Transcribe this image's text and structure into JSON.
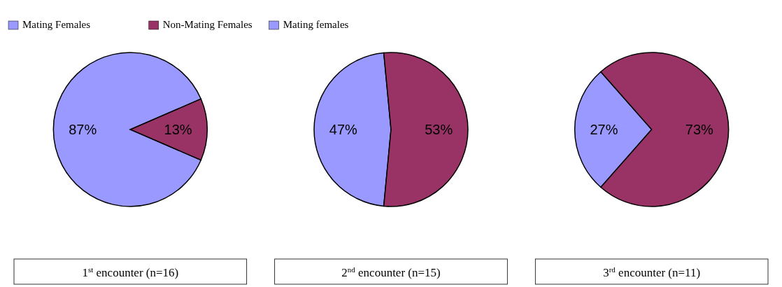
{
  "chart_data": [
    {
      "type": "pie",
      "title": "1$^{st}$ encounter (n=16)",
      "categories": [
        "Mating Females",
        "Non-Mating Females"
      ],
      "values": [
        87,
        13
      ],
      "value_labels": [
        "87%",
        "13%"
      ],
      "colors": [
        "#9999ff",
        "#993366"
      ],
      "legend": "top"
    },
    {
      "type": "pie",
      "title": "2$^{nd}$ encounter (n=15)",
      "categories": [
        "Mating females",
        null
      ],
      "values": [
        47,
        53
      ],
      "value_labels": [
        "47%",
        "53%"
      ],
      "colors": [
        "#9999ff",
        "#993366"
      ],
      "legend": "top"
    },
    {
      "type": "pie",
      "title": "3$^{rd}$ encounter (n=11)",
      "categories": [
        null,
        null
      ],
      "values": [
        27,
        73
      ],
      "value_labels": [
        "27%",
        "73%"
      ],
      "colors": [
        "#9999ff",
        "#993366"
      ]
    }
  ]
}
